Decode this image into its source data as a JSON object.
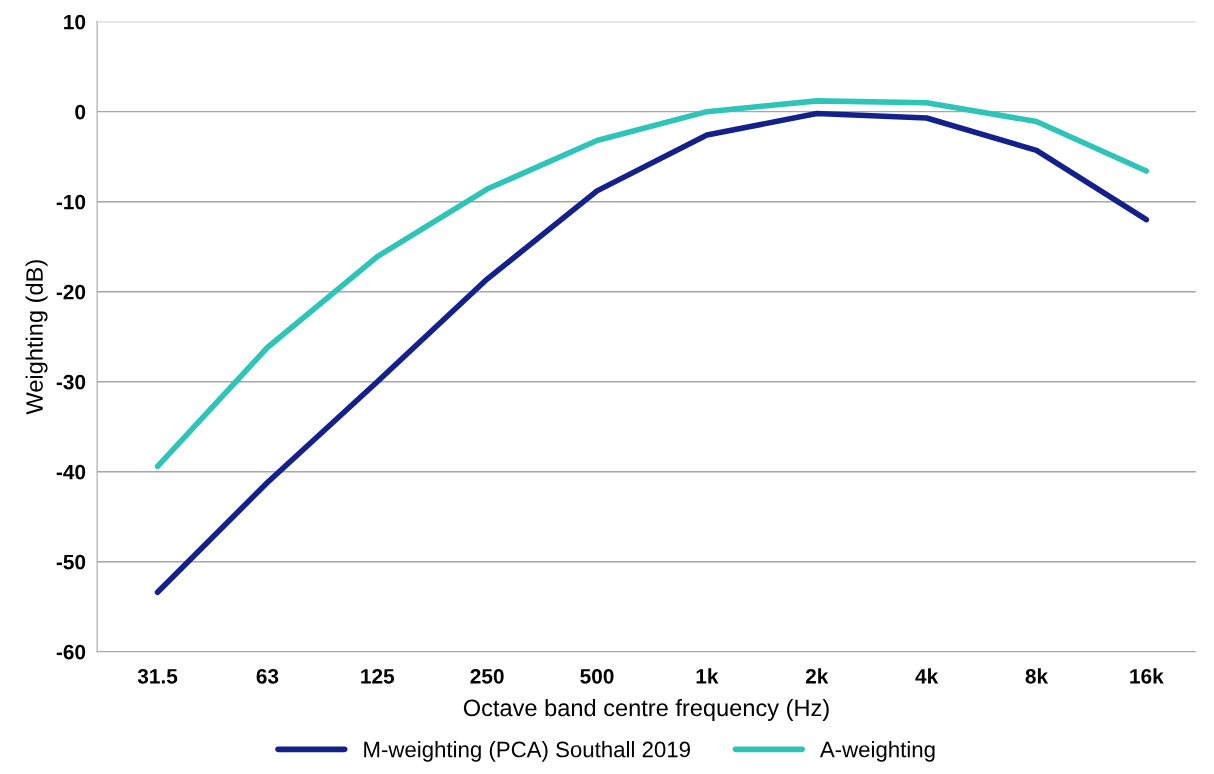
{
  "chart_data": {
    "type": "line",
    "xlabel": "Octave band centre frequency (Hz)",
    "ylabel": "Weighting (dB)",
    "categories": [
      "31.5",
      "63",
      "125",
      "250",
      "500",
      "1k",
      "2k",
      "4k",
      "8k",
      "16k"
    ],
    "series": [
      {
        "name": "M-weighting (PCA) Southall 2019",
        "color": "#14218c",
        "values": [
          -53.4,
          -41.2,
          -30.0,
          -18.6,
          -8.8,
          -2.6,
          -0.2,
          -0.7,
          -4.3,
          -12.0
        ]
      },
      {
        "name": "A-weighting",
        "color": "#2ec4b8",
        "values": [
          -39.4,
          -26.2,
          -16.1,
          -8.6,
          -3.2,
          0,
          1.2,
          1.0,
          -1.1,
          -6.6
        ]
      }
    ],
    "ylim": [
      -60,
      10
    ],
    "yticks": [
      -60,
      -50,
      -40,
      -30,
      -20,
      -10,
      0,
      10
    ],
    "grid": "y",
    "legend": "bottom",
    "marker": "none",
    "line_style": "solid"
  }
}
